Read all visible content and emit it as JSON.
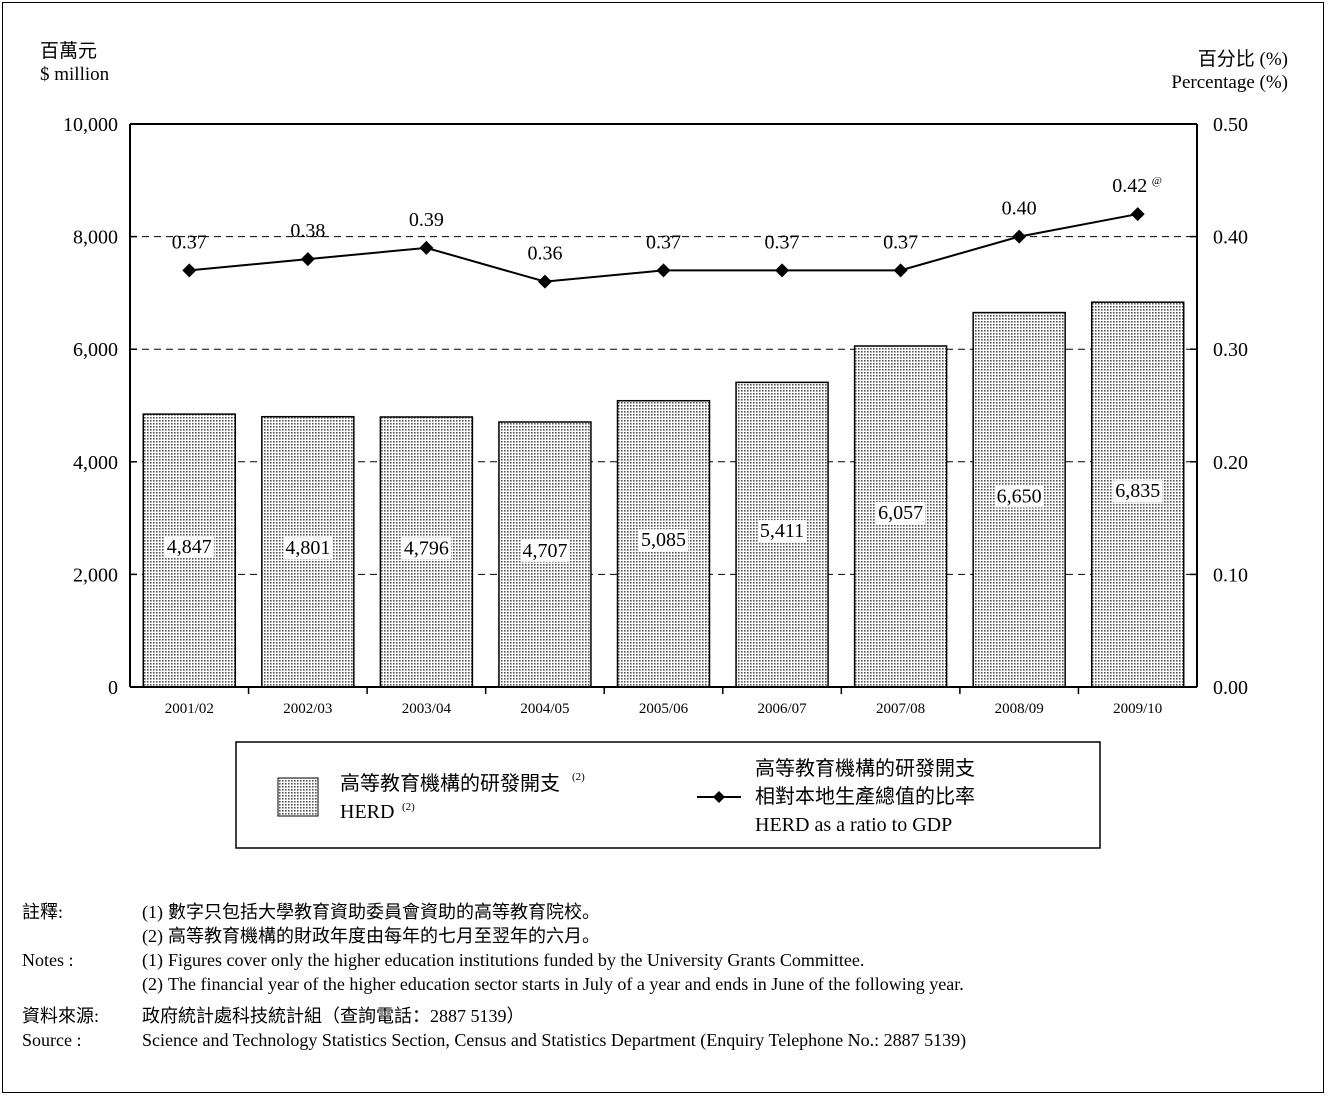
{
  "left_axis": {
    "unit_zh": "百萬元",
    "unit_en": "$ million"
  },
  "right_axis": {
    "unit_zh": "百分比 (%)",
    "unit_en": "Percentage (%)"
  },
  "chart_data": {
    "type": "bar",
    "categories": [
      "2001/02",
      "2002/03",
      "2003/04",
      "2004/05",
      "2005/06",
      "2006/07",
      "2007/08",
      "2008/09",
      "2009/10"
    ],
    "series": [
      {
        "name": "高等教育機構的研發開支 HERD",
        "type": "bar",
        "axis": "left",
        "values": [
          4847,
          4801,
          4796,
          4707,
          5085,
          5411,
          6057,
          6650,
          6835
        ],
        "labels": [
          "4,847",
          "4,801",
          "4,796",
          "4,707",
          "5,085",
          "5,411",
          "6,057",
          "6,650",
          "6,835"
        ]
      },
      {
        "name": "高等教育機構的研發開支相對本地生產總值的比率 HERD as a ratio to GDP",
        "type": "line",
        "axis": "right",
        "values": [
          0.37,
          0.38,
          0.39,
          0.36,
          0.37,
          0.37,
          0.37,
          0.4,
          0.42
        ],
        "labels": [
          "0.37",
          "0.38",
          "0.39",
          "0.36",
          "0.37",
          "0.37",
          "0.37",
          "0.40",
          "0.42"
        ]
      }
    ],
    "ylim_left": [
      0,
      10000
    ],
    "ylim_right": [
      0,
      0.5
    ],
    "left_ticks": [
      "0",
      "2,000",
      "4,000",
      "6,000",
      "8,000",
      "10,000"
    ],
    "right_ticks": [
      "0.00",
      "0.10",
      "0.20",
      "0.30",
      "0.40",
      "0.50"
    ],
    "grid": "dashed horizontal",
    "last_point_marker": "@",
    "bar_fill": "#bdbdbd",
    "line_color": "#000000"
  },
  "legend": {
    "bar_zh": "高等教育機構的研發開支",
    "bar_sup": "(2)",
    "bar_en": "HERD",
    "bar_en_sup": "(2)",
    "line_zh1": "高等教育機構的研發開支",
    "line_zh2": "相對本地生產總值的比率",
    "line_en": "HERD as a ratio to GDP"
  },
  "notes": {
    "label_zh": "註釋:",
    "label_en": "Notes :",
    "zh": [
      {
        "n": "(1)",
        "text": "數字只包括大學教育資助委員會資助的高等教育院校。"
      },
      {
        "n": "(2)",
        "text": "高等教育機構的財政年度由每年的七月至翌年的六月。"
      }
    ],
    "en": [
      {
        "n": "(1)",
        "text": "Figures cover only the higher education institutions funded by the University Grants Committee."
      },
      {
        "n": "(2)",
        "text": "The financial year of the higher education sector starts in July of a year and ends in June of the following year."
      }
    ]
  },
  "source": {
    "label_zh": "資料來源:",
    "text_zh": "政府統計處科技統計組（查詢電話：2887 5139）",
    "label_en": "Source :",
    "text_en": "Science and Technology Statistics Section, Census and Statistics Department (Enquiry Telephone No.: 2887 5139)"
  }
}
